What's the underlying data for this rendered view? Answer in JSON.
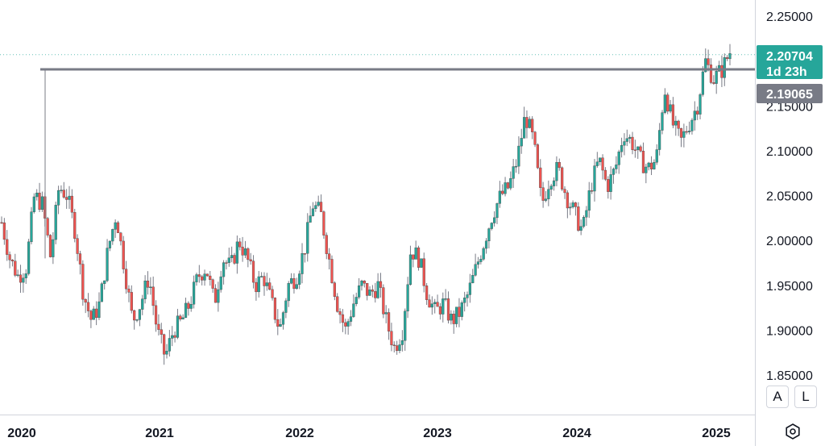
{
  "chart_data": {
    "type": "candlestick",
    "title": "",
    "x_axis": {
      "ticks": [
        "2020",
        "2021",
        "2022",
        "2023",
        "2024",
        "2025"
      ]
    },
    "y_axis": {
      "ticks": [
        "2.25000",
        "2.15000",
        "2.10000",
        "2.05000",
        "2.00000",
        "1.95000",
        "1.90000",
        "1.85000"
      ],
      "range": [
        1.85,
        2.25
      ]
    },
    "last_price": {
      "value": "2.20704",
      "countdown": "1d 23h",
      "color": "#26a69a"
    },
    "horizontal_line": {
      "value": "2.19065",
      "color": "#787b86"
    },
    "approx_weekly_closes": [
      2.02,
      1.98,
      1.96,
      1.97,
      2.05,
      2.04,
      1.98,
      2.06,
      2.05,
      2.01,
      1.94,
      1.91,
      1.93,
      1.99,
      2.03,
      1.97,
      1.91,
      1.93,
      1.96,
      1.9,
      1.87,
      1.9,
      1.91,
      1.93,
      1.96,
      1.97,
      1.93,
      1.98,
      1.97,
      2.0,
      1.98,
      1.95,
      1.96,
      1.93,
      1.9,
      1.95,
      1.96,
      1.99,
      2.04,
      2.03,
      1.98,
      1.93,
      1.9,
      1.93,
      1.95,
      1.94,
      1.95,
      1.91,
      1.88,
      1.9,
      1.99,
      1.98,
      1.94,
      1.92,
      1.93,
      1.91,
      1.92,
      1.94,
      1.97,
      2.0,
      2.03,
      2.05,
      2.06,
      2.09,
      2.14,
      2.11,
      2.04,
      2.07,
      2.08,
      2.05,
      2.03,
      2.01,
      2.06,
      2.09,
      2.06,
      2.08,
      2.12,
      2.11,
      2.09,
      2.08,
      2.09,
      2.17,
      2.13,
      2.11,
      2.13,
      2.15,
      2.2,
      2.18,
      2.19,
      2.21
    ]
  },
  "buttons": {
    "auto_label": "A",
    "log_label": "L"
  }
}
